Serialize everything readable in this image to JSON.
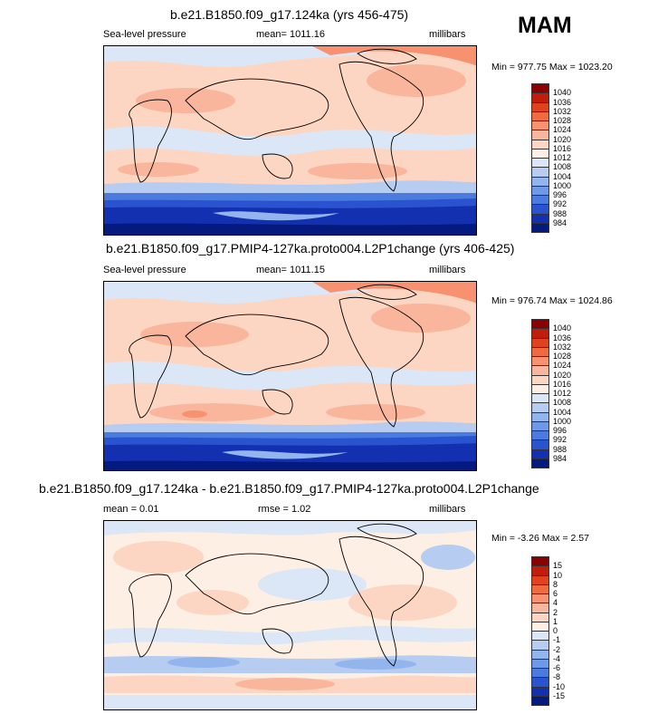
{
  "season": "MAM",
  "panels": [
    {
      "title": "b.e21.B1850.f09_g17.124ka (yrs 456-475)",
      "left_label": "Sea-level pressure",
      "center_label": "mean= 1011.16",
      "right_label": "millibars",
      "minmax": "Min = 977.75 Max = 1023.20",
      "colorbar_labels": [
        "1040",
        "1036",
        "1032",
        "1028",
        "1024",
        "1020",
        "1016",
        "1012",
        "1008",
        "1004",
        "1000",
        "996",
        "992",
        "988",
        "984"
      ],
      "colorbar_colors": [
        "#8b0000",
        "#c01d0c",
        "#e0421d",
        "#ef6a3f",
        "#f79170",
        "#fab69c",
        "#fcd6c2",
        "#fdefe4",
        "#dbe7f6",
        "#b6cdf1",
        "#93b5ee",
        "#6f98e8",
        "#4c7be0",
        "#2a54cf",
        "#1230b0",
        "#051a7e"
      ]
    },
    {
      "title": "b.e21.B1850.f09_g17.PMIP4-127ka.proto004.L2P1change (yrs 406-425)",
      "left_label": "Sea-level pressure",
      "center_label": "mean= 1011.15",
      "right_label": "millibars",
      "minmax": "Min = 976.74 Max = 1024.86",
      "colorbar_labels": [
        "1040",
        "1036",
        "1032",
        "1028",
        "1024",
        "1020",
        "1016",
        "1012",
        "1008",
        "1004",
        "1000",
        "996",
        "992",
        "988",
        "984"
      ],
      "colorbar_colors": [
        "#8b0000",
        "#c01d0c",
        "#e0421d",
        "#ef6a3f",
        "#f79170",
        "#fab69c",
        "#fcd6c2",
        "#fdefe4",
        "#dbe7f6",
        "#b6cdf1",
        "#93b5ee",
        "#6f98e8",
        "#4c7be0",
        "#2a54cf",
        "#1230b0",
        "#051a7e"
      ]
    },
    {
      "title": "b.e21.B1850.f09_g17.124ka - b.e21.B1850.f09_g17.PMIP4-127ka.proto004.L2P1change",
      "left_label": "mean =  0.01",
      "center_label": "rmse =  1.02",
      "right_label": "millibars",
      "minmax": "Min =  -3.26 Max =  2.57",
      "colorbar_labels": [
        "15",
        "10",
        "8",
        "6",
        "4",
        "2",
        "1",
        "0",
        "-1",
        "-2",
        "-4",
        "-6",
        "-8",
        "-10",
        "-15"
      ],
      "colorbar_colors": [
        "#8b0000",
        "#c01d0c",
        "#e0421d",
        "#ef6a3f",
        "#f79170",
        "#fab69c",
        "#fcd6c2",
        "#fdefe4",
        "#dbe7f6",
        "#b6cdf1",
        "#93b5ee",
        "#6f98e8",
        "#4c7be0",
        "#2a54cf",
        "#1230b0",
        "#051a7e"
      ]
    }
  ]
}
